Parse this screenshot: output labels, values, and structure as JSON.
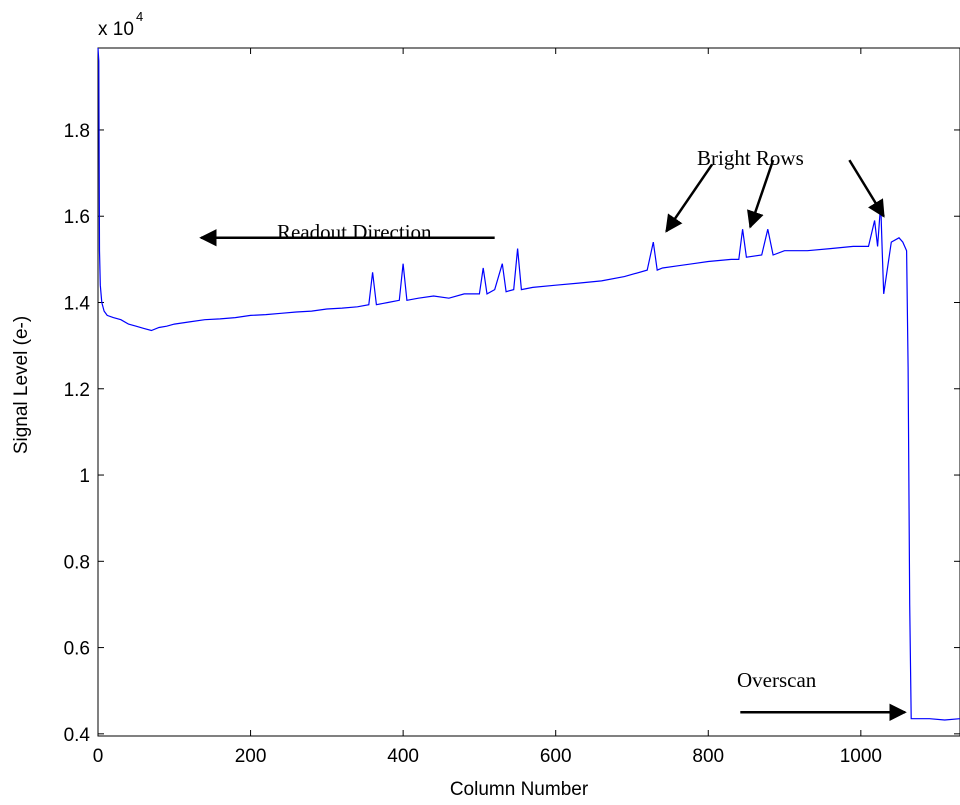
{
  "chart_data": {
    "type": "line",
    "xlabel": "Column Number",
    "ylabel": "Signal Level (e-)",
    "y_multiplier_label": "x 10",
    "y_multiplier_exponent": "4",
    "xlim": [
      0,
      1130
    ],
    "ylim": [
      3950,
      19900
    ],
    "x_ticks": [
      0,
      200,
      400,
      600,
      800,
      1000
    ],
    "x_tick_labels": [
      "0",
      "200",
      "400",
      "600",
      "800",
      "1000"
    ],
    "y_ticks": [
      4000,
      6000,
      8000,
      10000,
      12000,
      14000,
      16000,
      18000
    ],
    "y_tick_labels": [
      "0.4",
      "0.6",
      "0.8",
      "1",
      "1.2",
      "1.4",
      "1.6",
      "1.8"
    ],
    "grid": false,
    "line_color": "#0000ff",
    "series": [
      {
        "x": [
          0,
          1,
          2,
          3,
          5,
          8,
          12,
          20,
          30,
          40,
          50,
          60,
          70,
          80,
          90,
          100,
          120,
          140,
          160,
          180,
          200,
          220,
          240,
          260,
          280,
          300,
          320,
          340,
          355,
          360,
          365,
          380,
          395,
          400,
          405,
          420,
          440,
          460,
          480,
          500,
          505,
          510,
          520,
          530,
          535,
          545,
          550,
          555,
          570,
          600,
          630,
          660,
          690,
          720,
          728,
          733,
          740,
          760,
          780,
          800,
          830,
          840,
          845,
          850,
          870,
          878,
          885,
          900,
          930,
          960,
          990,
          1010,
          1018,
          1022,
          1026,
          1028,
          1030,
          1040,
          1050,
          1055,
          1060,
          1062,
          1064,
          1066,
          1070,
          1090,
          1110,
          1130
        ],
        "y": [
          19950,
          19600,
          15200,
          14400,
          14000,
          13800,
          13700,
          13650,
          13600,
          13500,
          13450,
          13400,
          13350,
          13420,
          13450,
          13500,
          13550,
          13600,
          13620,
          13650,
          13700,
          13720,
          13750,
          13780,
          13800,
          13850,
          13870,
          13900,
          13950,
          14700,
          13950,
          14000,
          14050,
          14900,
          14050,
          14100,
          14150,
          14100,
          14200,
          14200,
          14800,
          14200,
          14300,
          14900,
          14250,
          14300,
          15250,
          14300,
          14350,
          14400,
          14450,
          14500,
          14600,
          14750,
          15400,
          14750,
          14800,
          14850,
          14900,
          14950,
          15000,
          15000,
          15700,
          15050,
          15100,
          15700,
          15100,
          15200,
          15200,
          15250,
          15300,
          15300,
          15900,
          15300,
          16300,
          15200,
          14200,
          15400,
          15500,
          15400,
          15200,
          12500,
          7000,
          4350,
          4350,
          4350,
          4320,
          4350
        ]
      }
    ],
    "annotations": [
      {
        "text": "Readout Direction",
        "arrow_from": [
          520,
          15500
        ],
        "arrow_to": [
          135,
          15500
        ]
      },
      {
        "text": "Bright Rows",
        "arrows": [
          {
            "from": [
              805,
              17200
            ],
            "to": [
              745,
              15650
            ]
          },
          {
            "from": [
              885,
              17300
            ],
            "to": [
              855,
              15750
            ]
          },
          {
            "from": [
              985,
              17300
            ],
            "to": [
              1030,
              16000
            ]
          }
        ]
      },
      {
        "text": "Overscan",
        "arrow_from": [
          842,
          4500
        ],
        "arrow_to": [
          1058,
          4500
        ]
      }
    ]
  }
}
